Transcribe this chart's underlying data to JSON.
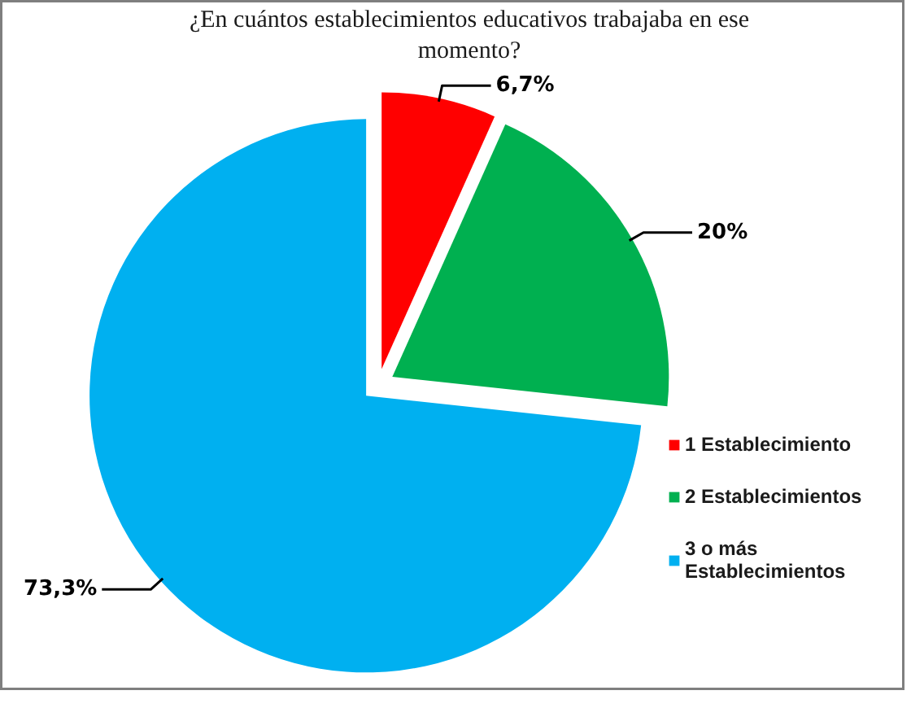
{
  "chart_data": {
    "type": "pie",
    "title": "¿En cuántos establecimientos educativos trabajaba en ese momento?",
    "categories": [
      "1 Establecimiento",
      "2 Establecimientos",
      "3 o más Establecimientos"
    ],
    "values": [
      6.7,
      20,
      73.3
    ],
    "colors": [
      "#ff0000",
      "#00b050",
      "#00b0f0"
    ],
    "value_labels": [
      "6,7%",
      "20%",
      "73,3%"
    ],
    "legend": "right"
  }
}
